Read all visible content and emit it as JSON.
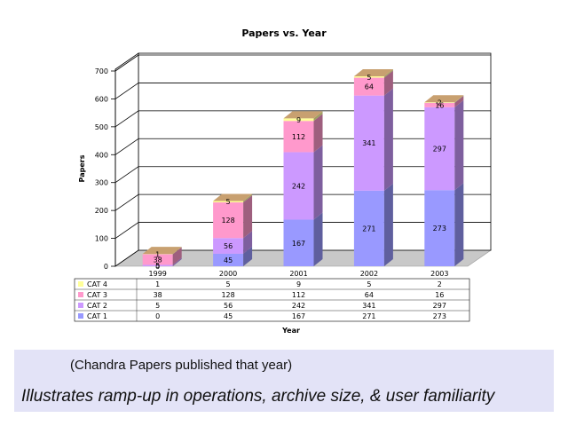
{
  "chart_data": {
    "type": "bar",
    "stacked": true,
    "title": "Papers vs. Year",
    "xlabel": "Year",
    "ylabel": "Papers",
    "categories": [
      "1999",
      "2000",
      "2001",
      "2002",
      "2003"
    ],
    "ylim": [
      0,
      700
    ],
    "yticks": [
      0,
      100,
      200,
      300,
      400,
      500,
      600,
      700
    ],
    "grid": true,
    "series": [
      {
        "name": "CAT 1",
        "values": [
          0,
          45,
          167,
          271,
          273
        ],
        "color": "#9999ff"
      },
      {
        "name": "CAT 2",
        "values": [
          5,
          56,
          242,
          341,
          297
        ],
        "color": "#cc99ff"
      },
      {
        "name": "CAT 3",
        "values": [
          38,
          128,
          112,
          64,
          16
        ],
        "color": "#ff99cc"
      },
      {
        "name": "CAT 4",
        "values": [
          1,
          5,
          9,
          5,
          2
        ],
        "color": "#ffff99"
      }
    ],
    "legend": "data-table below chart"
  },
  "captions": {
    "line1": "(Chandra Papers published that year)",
    "line2": "Illustrates ramp-up in operations, archive size, & user familiarity"
  }
}
